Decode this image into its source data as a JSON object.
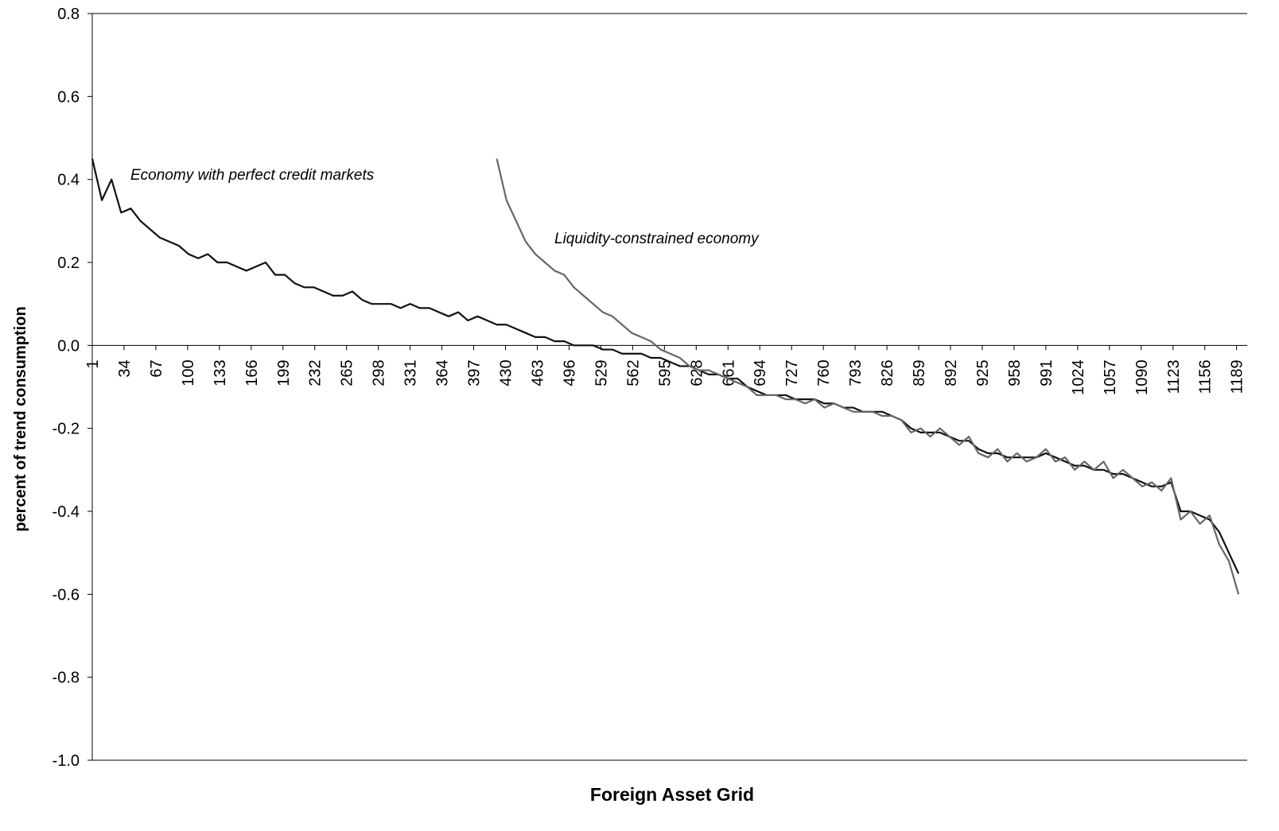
{
  "chart_data": {
    "type": "line",
    "xlabel": "Foreign Asset Grid",
    "ylabel": "percent of trend consumption",
    "annotations": [
      "Economy with perfect credit markets",
      "Liquidity-constrained economy"
    ],
    "xlim": [
      1,
      1200
    ],
    "xticks": [
      1,
      34,
      67,
      100,
      133,
      166,
      199,
      232,
      265,
      298,
      331,
      364,
      397,
      430,
      463,
      496,
      529,
      562,
      595,
      628,
      661,
      694,
      727,
      760,
      793,
      826,
      859,
      892,
      925,
      958,
      991,
      1024,
      1057,
      1090,
      1123,
      1156,
      1189
    ],
    "ylim": [
      -1.0,
      0.8
    ],
    "yticks": [
      0.8,
      0.6,
      0.4,
      0.2,
      {
        "value": 0,
        "label": "0.0"
      },
      -0.2,
      -0.4,
      -0.6,
      -0.8,
      {
        "value": -1.0,
        "label": "-1.0"
      }
    ],
    "x": [
      1,
      11,
      21,
      31,
      41,
      51,
      61,
      71,
      81,
      91,
      101,
      111,
      121,
      131,
      141,
      151,
      161,
      171,
      181,
      191,
      201,
      211,
      221,
      231,
      241,
      251,
      261,
      271,
      281,
      291,
      301,
      311,
      321,
      331,
      341,
      351,
      361,
      371,
      381,
      391,
      401,
      411,
      421,
      431,
      441,
      451,
      461,
      471,
      481,
      491,
      501,
      511,
      521,
      531,
      541,
      551,
      561,
      571,
      581,
      591,
      601,
      611,
      621,
      631,
      641,
      651,
      661,
      671,
      681,
      691,
      701,
      711,
      721,
      731,
      741,
      751,
      761,
      771,
      781,
      791,
      801,
      811,
      821,
      831,
      841,
      851,
      861,
      871,
      881,
      891,
      901,
      911,
      921,
      931,
      941,
      951,
      961,
      971,
      981,
      991,
      1001,
      1011,
      1021,
      1031,
      1041,
      1051,
      1061,
      1071,
      1081,
      1091,
      1101,
      1111,
      1121,
      1131,
      1141,
      1151,
      1161,
      1171,
      1181,
      1191
    ],
    "series": [
      {
        "name": "Economy with perfect credit markets",
        "color": "#111111",
        "values": [
          0.45,
          0.35,
          0.4,
          0.32,
          0.33,
          0.3,
          0.28,
          0.26,
          0.25,
          0.24,
          0.22,
          0.21,
          0.22,
          0.2,
          0.2,
          0.19,
          0.18,
          0.19,
          0.2,
          0.17,
          0.17,
          0.15,
          0.14,
          0.14,
          0.13,
          0.12,
          0.12,
          0.13,
          0.11,
          0.1,
          0.1,
          0.1,
          0.09,
          0.1,
          0.09,
          0.09,
          0.08,
          0.07,
          0.08,
          0.06,
          0.07,
          0.06,
          0.05,
          0.05,
          0.04,
          0.03,
          0.02,
          0.02,
          0.01,
          0.01,
          0.0,
          0.0,
          0.0,
          -0.01,
          -0.01,
          -0.02,
          -0.02,
          -0.02,
          -0.03,
          -0.03,
          -0.04,
          -0.05,
          -0.05,
          -0.06,
          -0.07,
          -0.07,
          -0.08,
          -0.08,
          -0.1,
          -0.11,
          -0.12,
          -0.12,
          -0.12,
          -0.13,
          -0.13,
          -0.13,
          -0.14,
          -0.14,
          -0.15,
          -0.15,
          -0.16,
          -0.16,
          -0.16,
          -0.17,
          -0.18,
          -0.2,
          -0.21,
          -0.21,
          -0.21,
          -0.22,
          -0.23,
          -0.23,
          -0.25,
          -0.26,
          -0.26,
          -0.27,
          -0.27,
          -0.27,
          -0.27,
          -0.26,
          -0.27,
          -0.28,
          -0.29,
          -0.29,
          -0.3,
          -0.3,
          -0.31,
          -0.31,
          -0.32,
          -0.33,
          -0.34,
          -0.34,
          -0.33,
          -0.4,
          -0.4,
          -0.41,
          -0.42,
          -0.45,
          -0.5,
          -0.55
        ]
      },
      {
        "name": "Liquidity-constrained economy",
        "color": "#666666",
        "values": [
          null,
          null,
          null,
          null,
          null,
          null,
          null,
          null,
          null,
          null,
          null,
          null,
          null,
          null,
          null,
          null,
          null,
          null,
          null,
          null,
          null,
          null,
          null,
          null,
          null,
          null,
          null,
          null,
          null,
          null,
          null,
          null,
          null,
          null,
          null,
          null,
          null,
          null,
          null,
          null,
          null,
          null,
          0.45,
          0.35,
          0.3,
          0.25,
          0.22,
          0.2,
          0.18,
          0.17,
          0.14,
          0.12,
          0.1,
          0.08,
          0.07,
          0.05,
          0.03,
          0.02,
          0.01,
          -0.01,
          -0.02,
          -0.03,
          -0.05,
          -0.06,
          -0.06,
          -0.07,
          -0.08,
          -0.09,
          -0.1,
          -0.12,
          -0.12,
          -0.12,
          -0.13,
          -0.13,
          -0.14,
          -0.13,
          -0.15,
          -0.14,
          -0.15,
          -0.16,
          -0.16,
          -0.16,
          -0.17,
          -0.17,
          -0.18,
          -0.21,
          -0.2,
          -0.22,
          -0.2,
          -0.22,
          -0.24,
          -0.22,
          -0.26,
          -0.27,
          -0.25,
          -0.28,
          -0.26,
          -0.28,
          -0.27,
          -0.25,
          -0.28,
          -0.27,
          -0.3,
          -0.28,
          -0.3,
          -0.28,
          -0.32,
          -0.3,
          -0.32,
          -0.34,
          -0.33,
          -0.35,
          -0.32,
          -0.42,
          -0.4,
          -0.43,
          -0.41,
          -0.48,
          -0.52,
          -0.6
        ]
      }
    ]
  }
}
